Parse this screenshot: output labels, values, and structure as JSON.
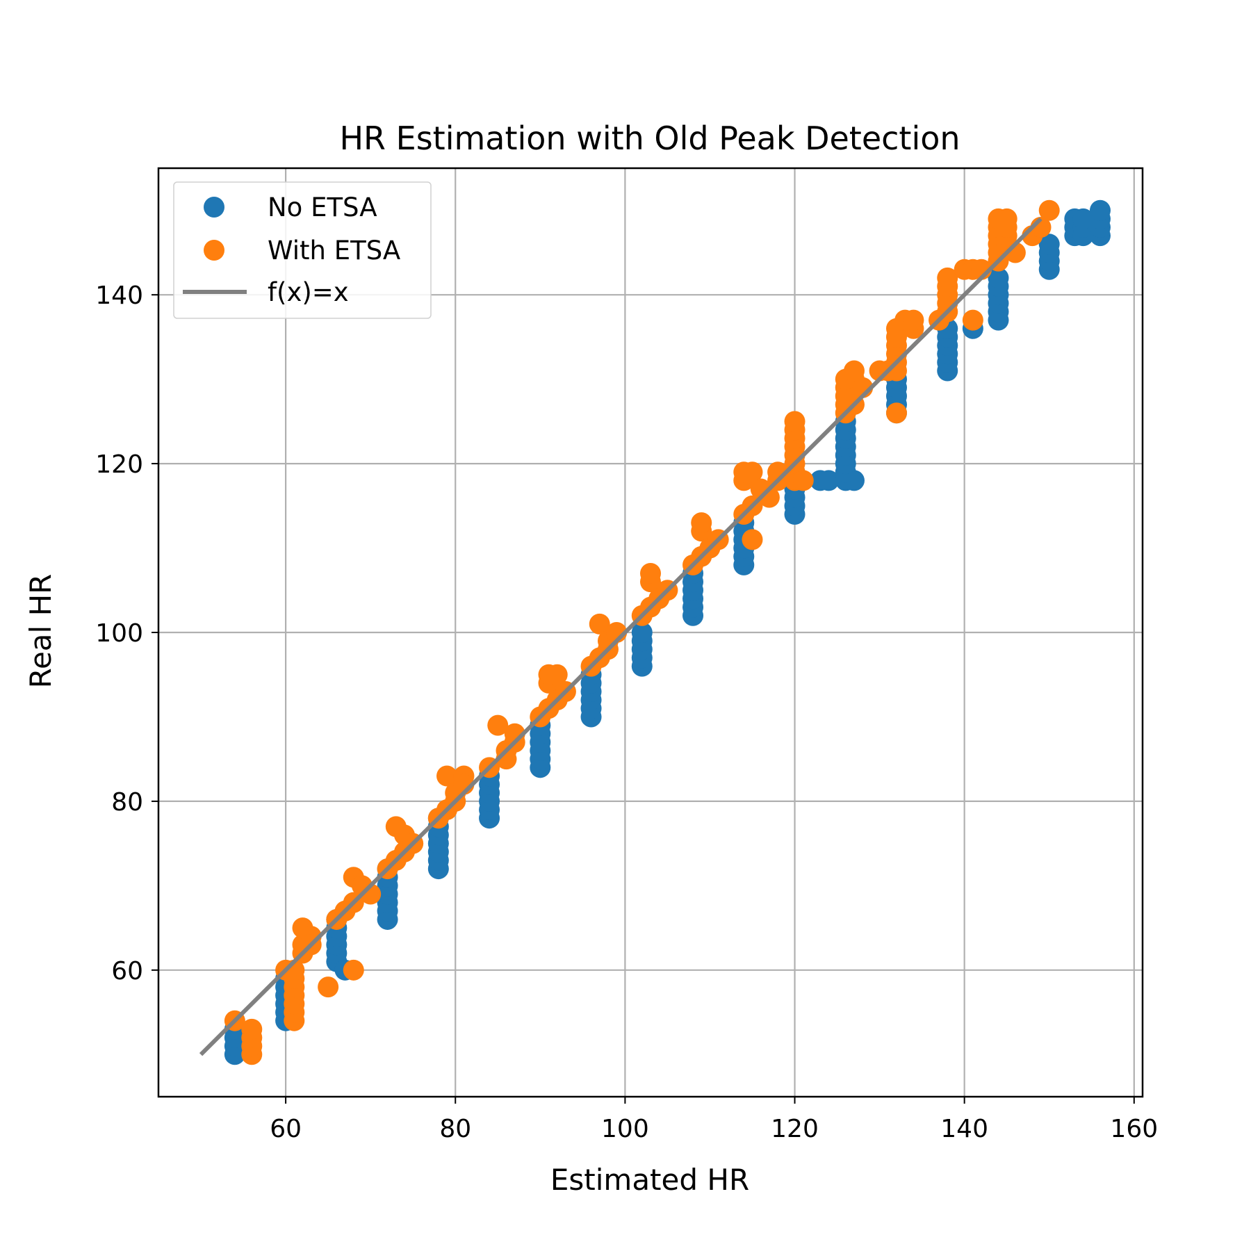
{
  "chart_data": {
    "type": "scatter",
    "title": "HR Estimation with Old Peak Detection",
    "xlabel": "Estimated HR",
    "ylabel": "Real HR",
    "xlim": [
      45,
      161
    ],
    "ylim": [
      45,
      155
    ],
    "xticks": [
      60,
      80,
      100,
      120,
      140,
      160
    ],
    "yticks": [
      60,
      80,
      100,
      120,
      140
    ],
    "grid": true,
    "legend_position": "top-left",
    "colors": {
      "no_etsa": "#1f77b4",
      "with_etsa": "#ff7f0e",
      "identity": "#808080"
    },
    "series": [
      {
        "name": "No ETSA",
        "points": [
          [
            54,
            50
          ],
          [
            54,
            51
          ],
          [
            54,
            52
          ],
          [
            54,
            53
          ],
          [
            60,
            54
          ],
          [
            60,
            55
          ],
          [
            60,
            56
          ],
          [
            60,
            57
          ],
          [
            60,
            58
          ],
          [
            60,
            59
          ],
          [
            66,
            61
          ],
          [
            66,
            62
          ],
          [
            66,
            63
          ],
          [
            66,
            64
          ],
          [
            66,
            65
          ],
          [
            66,
            66
          ],
          [
            67,
            60
          ],
          [
            72,
            66
          ],
          [
            72,
            67
          ],
          [
            72,
            68
          ],
          [
            72,
            69
          ],
          [
            72,
            70
          ],
          [
            72,
            71
          ],
          [
            72,
            72
          ],
          [
            78,
            72
          ],
          [
            78,
            73
          ],
          [
            78,
            74
          ],
          [
            78,
            75
          ],
          [
            78,
            76
          ],
          [
            78,
            77
          ],
          [
            78,
            78
          ],
          [
            84,
            78
          ],
          [
            84,
            79
          ],
          [
            84,
            80
          ],
          [
            84,
            81
          ],
          [
            84,
            82
          ],
          [
            84,
            83
          ],
          [
            90,
            84
          ],
          [
            90,
            85
          ],
          [
            90,
            86
          ],
          [
            90,
            87
          ],
          [
            90,
            88
          ],
          [
            90,
            89
          ],
          [
            96,
            90
          ],
          [
            96,
            91
          ],
          [
            96,
            92
          ],
          [
            96,
            93
          ],
          [
            96,
            94
          ],
          [
            96,
            95
          ],
          [
            102,
            96
          ],
          [
            102,
            97
          ],
          [
            102,
            98
          ],
          [
            102,
            99
          ],
          [
            102,
            100
          ],
          [
            108,
            102
          ],
          [
            108,
            103
          ],
          [
            108,
            104
          ],
          [
            108,
            105
          ],
          [
            108,
            106
          ],
          [
            108,
            107
          ],
          [
            114,
            108
          ],
          [
            114,
            109
          ],
          [
            114,
            110
          ],
          [
            114,
            111
          ],
          [
            114,
            112
          ],
          [
            114,
            113
          ],
          [
            120,
            114
          ],
          [
            120,
            115
          ],
          [
            120,
            116
          ],
          [
            120,
            117
          ],
          [
            120,
            118
          ],
          [
            120,
            119
          ],
          [
            123,
            118
          ],
          [
            124,
            118
          ],
          [
            126,
            118
          ],
          [
            127,
            118
          ],
          [
            126,
            119
          ],
          [
            126,
            120
          ],
          [
            126,
            121
          ],
          [
            126,
            122
          ],
          [
            126,
            123
          ],
          [
            126,
            124
          ],
          [
            126,
            125
          ],
          [
            132,
            126
          ],
          [
            132,
            127
          ],
          [
            132,
            128
          ],
          [
            132,
            129
          ],
          [
            132,
            130
          ],
          [
            138,
            131
          ],
          [
            138,
            132
          ],
          [
            138,
            133
          ],
          [
            138,
            134
          ],
          [
            138,
            135
          ],
          [
            138,
            136
          ],
          [
            141,
            136
          ],
          [
            144,
            137
          ],
          [
            144,
            138
          ],
          [
            144,
            139
          ],
          [
            144,
            140
          ],
          [
            144,
            141
          ],
          [
            144,
            142
          ],
          [
            150,
            143
          ],
          [
            150,
            144
          ],
          [
            150,
            145
          ],
          [
            150,
            146
          ],
          [
            153,
            147
          ],
          [
            153,
            148
          ],
          [
            153,
            149
          ],
          [
            154,
            147
          ],
          [
            154,
            148
          ],
          [
            154,
            149
          ],
          [
            156,
            147
          ],
          [
            156,
            148
          ],
          [
            156,
            149
          ],
          [
            156,
            150
          ]
        ]
      },
      {
        "name": "With ETSA",
        "points": [
          [
            54,
            54
          ],
          [
            56,
            50
          ],
          [
            56,
            51
          ],
          [
            56,
            52
          ],
          [
            56,
            53
          ],
          [
            60,
            60
          ],
          [
            61,
            54
          ],
          [
            61,
            55
          ],
          [
            61,
            56
          ],
          [
            61,
            57
          ],
          [
            61,
            58
          ],
          [
            61,
            59
          ],
          [
            61,
            60
          ],
          [
            62,
            62
          ],
          [
            62,
            63
          ],
          [
            62,
            65
          ],
          [
            63,
            64
          ],
          [
            63,
            63
          ],
          [
            65,
            58
          ],
          [
            66,
            66
          ],
          [
            67,
            67
          ],
          [
            68,
            68
          ],
          [
            68,
            71
          ],
          [
            68,
            60
          ],
          [
            69,
            70
          ],
          [
            70,
            69
          ],
          [
            72,
            72
          ],
          [
            73,
            73
          ],
          [
            73,
            77
          ],
          [
            74,
            74
          ],
          [
            74,
            76
          ],
          [
            75,
            75
          ],
          [
            78,
            78
          ],
          [
            79,
            79
          ],
          [
            79,
            83
          ],
          [
            80,
            80
          ],
          [
            80,
            81
          ],
          [
            81,
            83
          ],
          [
            81,
            82
          ],
          [
            84,
            84
          ],
          [
            85,
            89
          ],
          [
            86,
            85
          ],
          [
            86,
            86
          ],
          [
            87,
            87
          ],
          [
            87,
            88
          ],
          [
            90,
            90
          ],
          [
            91,
            91
          ],
          [
            91,
            94
          ],
          [
            91,
            95
          ],
          [
            92,
            92
          ],
          [
            92,
            95
          ],
          [
            93,
            93
          ],
          [
            96,
            96
          ],
          [
            97,
            97
          ],
          [
            97,
            101
          ],
          [
            98,
            98
          ],
          [
            98,
            99
          ],
          [
            99,
            100
          ],
          [
            102,
            102
          ],
          [
            103,
            103
          ],
          [
            103,
            106
          ],
          [
            103,
            107
          ],
          [
            104,
            104
          ],
          [
            105,
            105
          ],
          [
            108,
            108
          ],
          [
            109,
            109
          ],
          [
            109,
            112
          ],
          [
            109,
            113
          ],
          [
            110,
            110
          ],
          [
            111,
            111
          ],
          [
            114,
            114
          ],
          [
            114,
            118
          ],
          [
            114,
            119
          ],
          [
            115,
            115
          ],
          [
            115,
            111
          ],
          [
            115,
            119
          ],
          [
            116,
            117
          ],
          [
            117,
            116
          ],
          [
            118,
            118
          ],
          [
            118,
            119
          ],
          [
            120,
            118
          ],
          [
            120,
            119
          ],
          [
            120,
            120
          ],
          [
            120,
            121
          ],
          [
            120,
            122
          ],
          [
            120,
            123
          ],
          [
            120,
            124
          ],
          [
            120,
            125
          ],
          [
            121,
            118
          ],
          [
            126,
            126
          ],
          [
            126,
            127
          ],
          [
            126,
            128
          ],
          [
            126,
            129
          ],
          [
            126,
            130
          ],
          [
            127,
            127
          ],
          [
            127,
            130
          ],
          [
            127,
            131
          ],
          [
            128,
            129
          ],
          [
            130,
            131
          ],
          [
            131,
            131
          ],
          [
            132,
            131
          ],
          [
            132,
            132
          ],
          [
            132,
            133
          ],
          [
            132,
            134
          ],
          [
            132,
            135
          ],
          [
            132,
            136
          ],
          [
            132,
            126
          ],
          [
            133,
            137
          ],
          [
            134,
            136
          ],
          [
            134,
            137
          ],
          [
            137,
            137
          ],
          [
            138,
            138
          ],
          [
            138,
            139
          ],
          [
            138,
            140
          ],
          [
            138,
            141
          ],
          [
            138,
            142
          ],
          [
            140,
            143
          ],
          [
            141,
            137
          ],
          [
            141,
            143
          ],
          [
            142,
            143
          ],
          [
            144,
            144
          ],
          [
            144,
            145
          ],
          [
            144,
            146
          ],
          [
            144,
            147
          ],
          [
            144,
            148
          ],
          [
            144,
            149
          ],
          [
            145,
            146
          ],
          [
            145,
            147
          ],
          [
            145,
            148
          ],
          [
            145,
            149
          ],
          [
            146,
            145
          ],
          [
            148,
            147
          ],
          [
            149,
            148
          ],
          [
            150,
            150
          ]
        ]
      },
      {
        "name": "f(x)=x",
        "line": [
          [
            50,
            50
          ],
          [
            149,
            149
          ]
        ]
      }
    ]
  }
}
